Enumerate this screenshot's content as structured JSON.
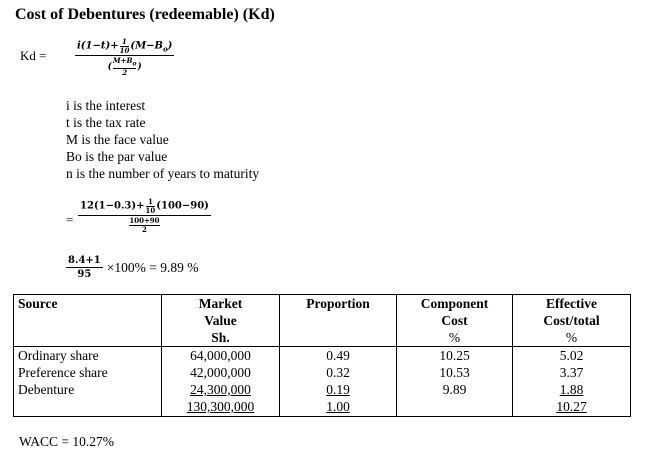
{
  "title": "Cost of Debentures (redeemable) (Kd)",
  "formula": {
    "label": "Kd =",
    "num_a": "i(1−t)+",
    "frac_top": "1",
    "frac_bot": "10",
    "num_b": "(M−B",
    "sub": "o",
    "num_c": ")",
    "den_top_a": "M+B",
    "den_top_sub": "o",
    "den_bot": "2"
  },
  "definitions": [
    "i is the interest",
    "t is the tax rate",
    "M is the face value",
    "Bo is the par value",
    "n is the number of years to maturity"
  ],
  "substitution": {
    "eq": "=",
    "num_a": "12(1−0.3)+",
    "frac_top": "1",
    "frac_bot": "10",
    "num_b": "(100−90)",
    "den_top": "100+90",
    "den_bot": "2"
  },
  "result": {
    "num": "8.4+1",
    "den": "95",
    "text": "×100% = 9.89 %"
  },
  "table": {
    "headers": {
      "source": "Source",
      "market_value": [
        "Market",
        "Value",
        "Sh."
      ],
      "proportion": "Proportion",
      "component_cost": [
        "Component",
        "Cost",
        "%"
      ],
      "effective": [
        "Effective",
        "Cost/total",
        "%"
      ]
    },
    "sources": [
      "Ordinary share",
      "Preference share",
      "Debenture"
    ],
    "market_values": [
      "64,000,000",
      "42,000,000",
      "24,300,000"
    ],
    "market_total": "130,300,000",
    "proportions": [
      "0.49",
      "0.32",
      "0.19"
    ],
    "proportion_total": "1.00",
    "component_costs": [
      "10.25",
      "10.53",
      "9.89"
    ],
    "effective_costs": [
      "5.02",
      "3.37",
      "1.88"
    ],
    "effective_total": "10.27"
  },
  "wacc": "WACC = 10.27%"
}
